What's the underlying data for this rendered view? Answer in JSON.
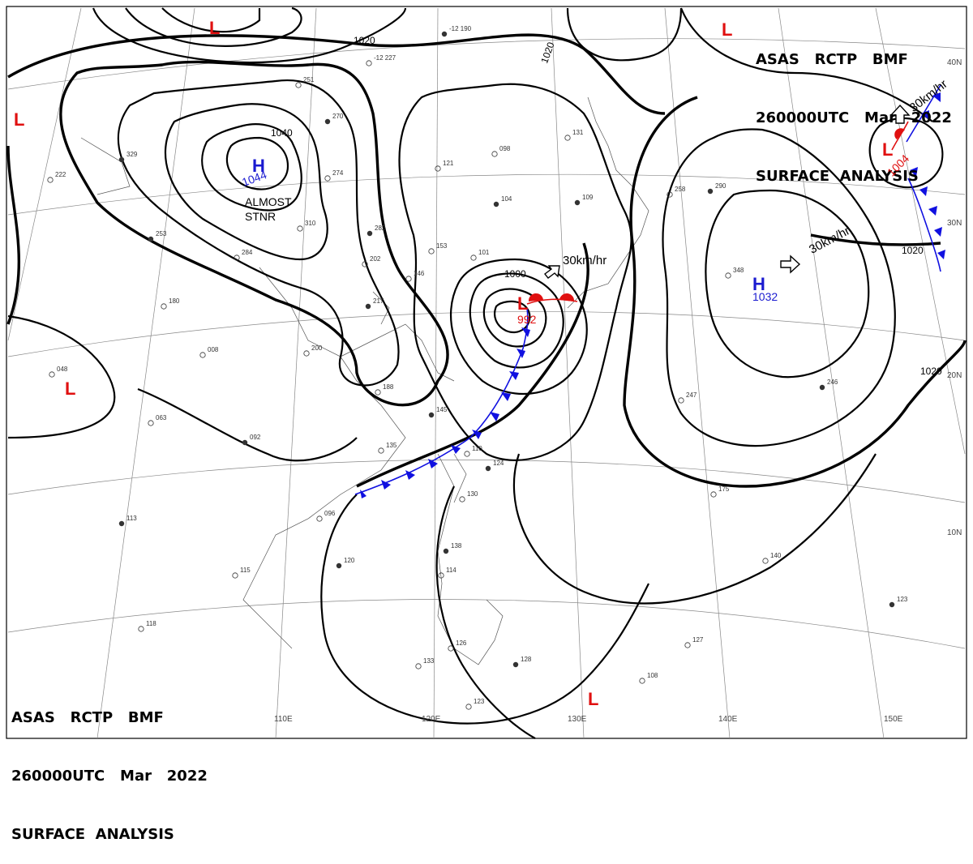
{
  "header": {
    "top_right": {
      "line1": "ASAS   RCTP   BMF",
      "line2": "260000UTC   Mar   2022",
      "line3": "SURFACE  ANALYSIS"
    },
    "bottom_left": {
      "line1": "ASAS   RCTP   BMF",
      "line2": "260000UTC   Mar   2022",
      "line3": "SURFACE  ANALYSIS"
    }
  },
  "axis": {
    "lon_ticks": [
      "110E",
      "120E",
      "130E",
      "140E",
      "150E"
    ],
    "lat_ticks": [
      "40N",
      "30N",
      "20N",
      "10N"
    ]
  },
  "isobar_labels": [
    "1020",
    "1020",
    "1040",
    "1000",
    "1020",
    "1020"
  ],
  "systems": [
    {
      "type": "H",
      "pressure": "1044",
      "note": "ALMOST\nSTNR"
    },
    {
      "type": "H",
      "pressure": "1032",
      "speed": "30km/hr"
    },
    {
      "type": "L",
      "pressure": "992",
      "speed": "30km/hr"
    },
    {
      "type": "L",
      "pressure": "1004",
      "speed": "30km/hr"
    },
    {
      "type": "L",
      "pressure": ""
    },
    {
      "type": "L",
      "pressure": ""
    },
    {
      "type": "L",
      "pressure": ""
    },
    {
      "type": "L",
      "pressure": ""
    }
  ],
  "station_labels": [
    "-12 190",
    "-12 227",
    "251",
    "270",
    "274",
    "310",
    "282",
    "202",
    "146",
    "217",
    "200",
    "188",
    "145",
    "135",
    "110",
    "124",
    "130",
    "096",
    "120",
    "115",
    "118",
    "113",
    "063",
    "048",
    "253",
    "284",
    "180",
    "329",
    "222",
    "008",
    "092",
    "121",
    "098",
    "104",
    "153",
    "101",
    "109",
    "131",
    "258",
    "290",
    "348",
    "247",
    "246",
    "175",
    "140",
    "123",
    "127",
    "108",
    "138",
    "114",
    "126",
    "128",
    "133",
    "123"
  ],
  "colors": {
    "cold_front": "#1010e0",
    "warm_front": "#e01010",
    "high": "#1a1ad0",
    "low": "#e01010"
  }
}
